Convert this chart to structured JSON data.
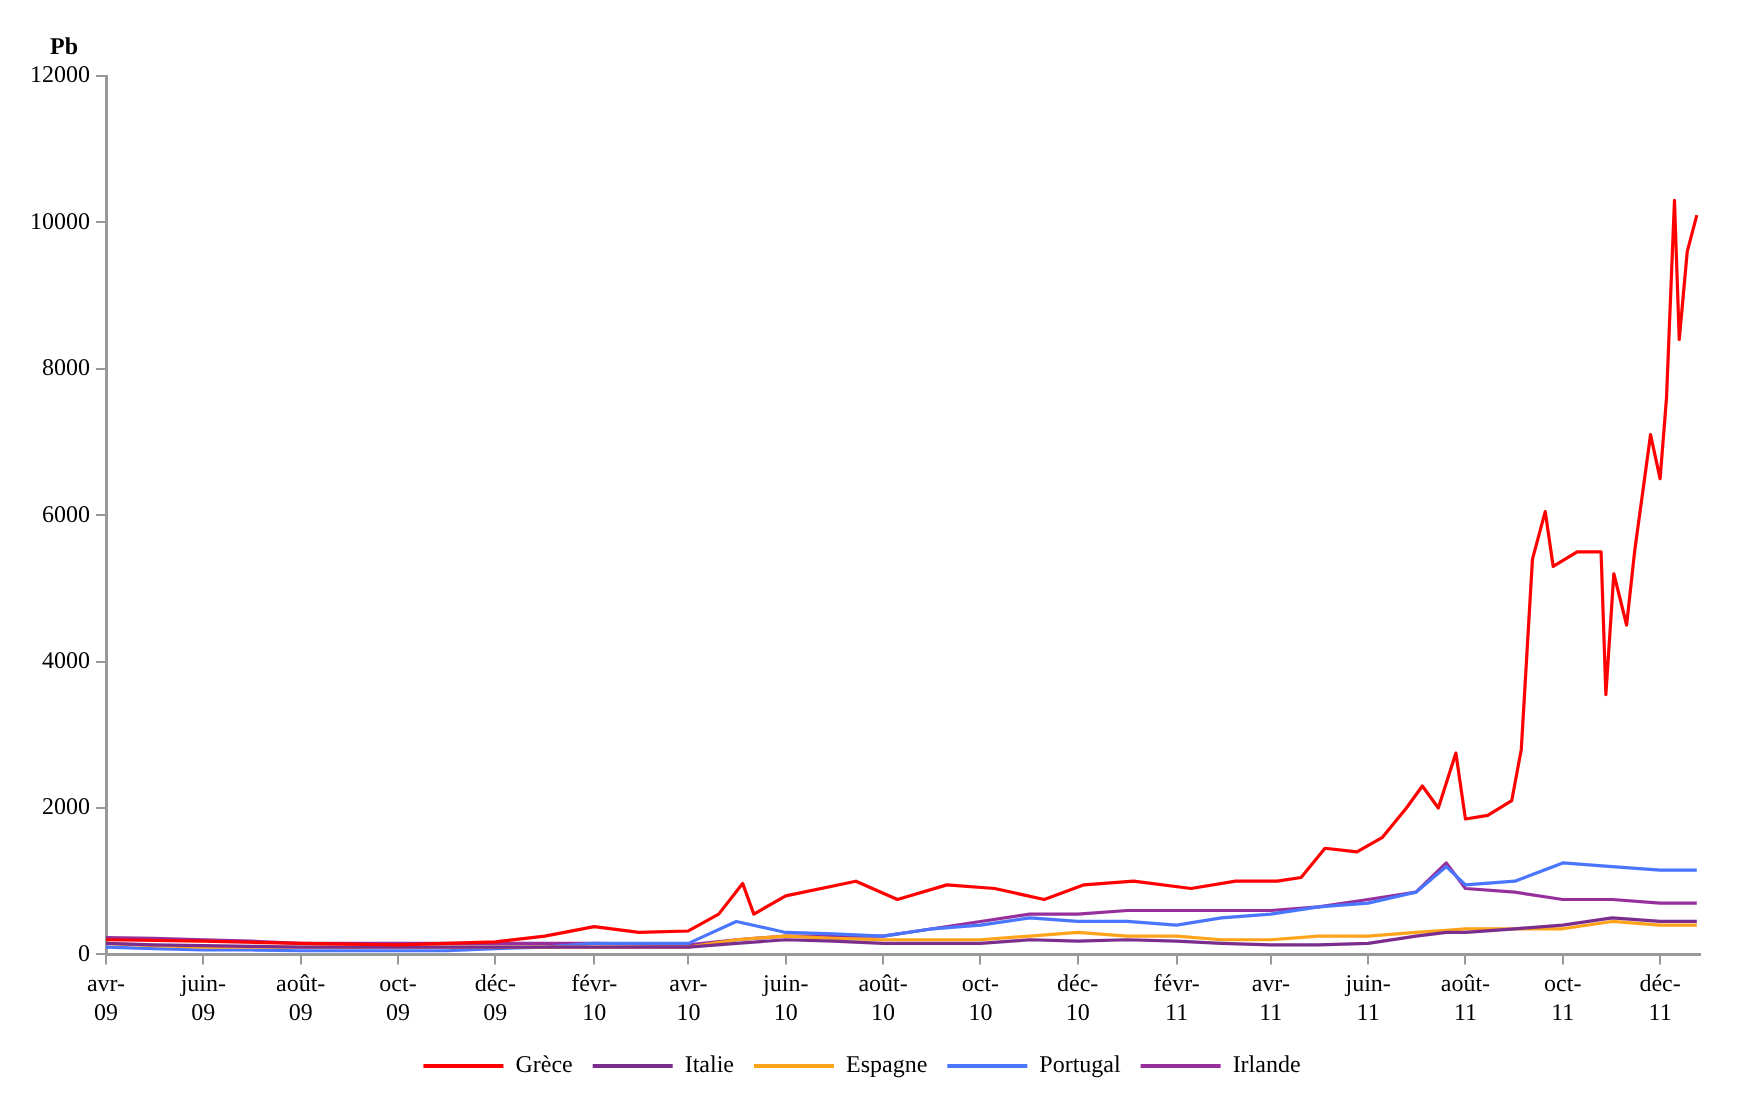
{
  "chart_data": {
    "type": "line",
    "ylabel": "Pb",
    "x": [
      "2009-04-01",
      "2009-05-01",
      "2009-06-01",
      "2009-07-01",
      "2009-08-01",
      "2009-09-01",
      "2009-10-01",
      "2009-11-01",
      "2009-12-01",
      "2010-01-01",
      "2010-02-01",
      "2010-03-01",
      "2010-04-01",
      "2010-05-01",
      "2010-06-01",
      "2010-07-01",
      "2010-08-01",
      "2010-09-01",
      "2010-10-01",
      "2010-11-01",
      "2010-12-01",
      "2011-01-01",
      "2011-02-01",
      "2011-03-01",
      "2011-04-01",
      "2011-05-01",
      "2011-06-01",
      "2011-07-01",
      "2011-07-20",
      "2011-08-01",
      "2011-09-01",
      "2011-10-01",
      "2011-11-01",
      "2011-12-01",
      "2011-12-24"
    ],
    "series": [
      {
        "name": "Grèce",
        "color": "#ff0000",
        "x": [
          "2009-04-01",
          "2009-06-01",
          "2009-08-01",
          "2009-10-01",
          "2009-12-01",
          "2010-01-01",
          "2010-02-01",
          "2010-03-01",
          "2010-04-01",
          "2010-04-20",
          "2010-05-05",
          "2010-05-12",
          "2010-06-01",
          "2010-07-15",
          "2010-08-10",
          "2010-09-10",
          "2010-10-10",
          "2010-11-10",
          "2010-12-05",
          "2011-01-05",
          "2011-02-10",
          "2011-03-10",
          "2011-04-05",
          "2011-04-20",
          "2011-05-05",
          "2011-05-25",
          "2011-06-10",
          "2011-06-25",
          "2011-07-05",
          "2011-07-15",
          "2011-07-26",
          "2011-08-01",
          "2011-08-15",
          "2011-08-30",
          "2011-09-05",
          "2011-09-12",
          "2011-09-20",
          "2011-09-25",
          "2011-10-10",
          "2011-10-25",
          "2011-10-28",
          "2011-11-02",
          "2011-11-10",
          "2011-11-15",
          "2011-11-25",
          "2011-12-01",
          "2011-12-05",
          "2011-12-10",
          "2011-12-13",
          "2011-12-18",
          "2011-12-24"
        ],
        "values": [
          200,
          180,
          150,
          130,
          170,
          250,
          380,
          300,
          320,
          550,
          970,
          550,
          800,
          1000,
          750,
          950,
          900,
          750,
          950,
          1000,
          900,
          1000,
          1000,
          1050,
          1450,
          1400,
          1600,
          2000,
          2300,
          2000,
          2750,
          1850,
          1900,
          2100,
          2800,
          5400,
          6050,
          5300,
          5500,
          5500,
          3550,
          5200,
          4500,
          5500,
          7100,
          6500,
          7600,
          10300,
          8400,
          9600,
          10100
        ]
      },
      {
        "name": "Italie",
        "color": "#7b2d8e",
        "values": [
          150,
          130,
          120,
          110,
          100,
          100,
          100,
          100,
          100,
          100,
          100,
          100,
          100,
          150,
          200,
          180,
          150,
          150,
          150,
          200,
          180,
          200,
          180,
          150,
          130,
          130,
          150,
          250,
          300,
          300,
          350,
          400,
          500,
          450,
          450
        ]
      },
      {
        "name": "Espagne",
        "color": "#ffa31a",
        "values": [
          150,
          120,
          100,
          100,
          100,
          100,
          100,
          100,
          100,
          100,
          100,
          100,
          100,
          200,
          250,
          220,
          200,
          200,
          200,
          250,
          300,
          250,
          250,
          200,
          200,
          250,
          250,
          300,
          330,
          350,
          350,
          350,
          450,
          400,
          400
        ]
      },
      {
        "name": "Portugal",
        "color": "#4a76ff",
        "values": [
          100,
          80,
          60,
          60,
          50,
          50,
          50,
          50,
          80,
          100,
          150,
          150,
          150,
          450,
          300,
          280,
          250,
          350,
          400,
          500,
          450,
          450,
          400,
          500,
          550,
          650,
          700,
          850,
          1200,
          950,
          1000,
          1250,
          1200,
          1150,
          1150
        ]
      },
      {
        "name": "Irlande",
        "color": "#962f9c",
        "values": [
          230,
          220,
          200,
          180,
          150,
          150,
          150,
          150,
          150,
          150,
          150,
          140,
          130,
          200,
          250,
          250,
          250,
          350,
          450,
          550,
          550,
          600,
          600,
          600,
          600,
          650,
          750,
          850,
          1250,
          900,
          850,
          750,
          750,
          700,
          700
        ]
      }
    ],
    "xlim": [
      "2009-04-01",
      "2011-12-26"
    ],
    "xticks": [
      {
        "value": "2009-04-01",
        "label": "avr-09"
      },
      {
        "value": "2009-06-01",
        "label": "juin-09"
      },
      {
        "value": "2009-08-01",
        "label": "août-09"
      },
      {
        "value": "2009-10-01",
        "label": "oct-09"
      },
      {
        "value": "2009-12-01",
        "label": "déc-09"
      },
      {
        "value": "2010-02-01",
        "label": "févr-10"
      },
      {
        "value": "2010-04-01",
        "label": "avr-10"
      },
      {
        "value": "2010-06-01",
        "label": "juin-10"
      },
      {
        "value": "2010-08-01",
        "label": "août-10"
      },
      {
        "value": "2010-10-01",
        "label": "oct-10"
      },
      {
        "value": "2010-12-01",
        "label": "déc-10"
      },
      {
        "value": "2011-02-01",
        "label": "févr-11"
      },
      {
        "value": "2011-04-01",
        "label": "avr-11"
      },
      {
        "value": "2011-06-01",
        "label": "juin-11"
      },
      {
        "value": "2011-08-01",
        "label": "août-11"
      },
      {
        "value": "2011-10-01",
        "label": "oct-11"
      },
      {
        "value": "2011-12-01",
        "label": "déc-11"
      }
    ],
    "ylim": [
      0,
      12000
    ],
    "yticks": [
      0,
      2000,
      4000,
      6000,
      8000,
      10000,
      12000
    ],
    "grid": false,
    "legend": "bottom",
    "marker": "none",
    "line_style": "solid"
  }
}
